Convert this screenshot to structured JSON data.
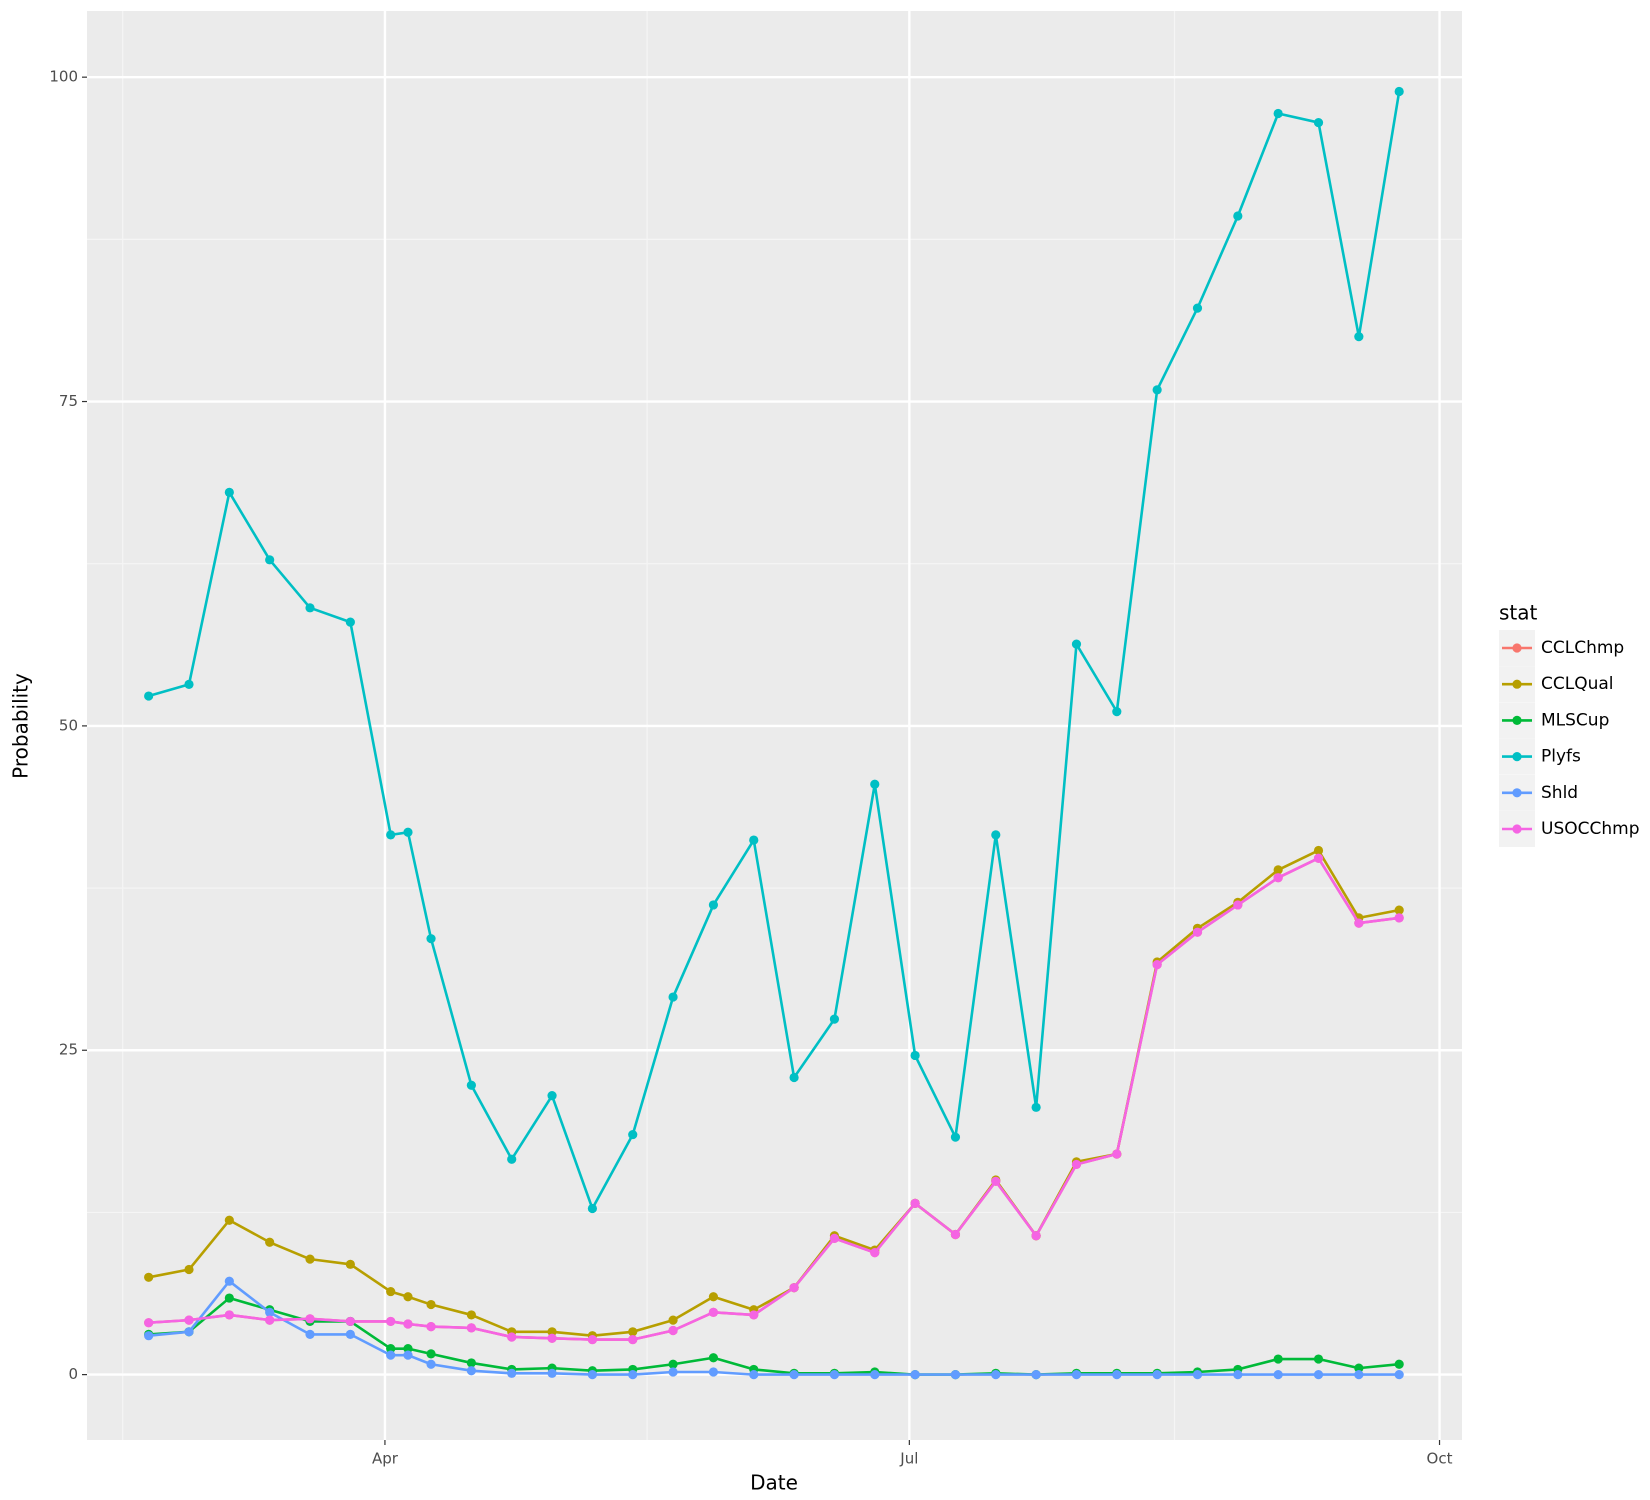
{
  "chart_data": {
    "type": "line",
    "x_label": "Date",
    "y_label": "Probability",
    "legend_title": "stat",
    "x": [
      50,
      57,
      64,
      71,
      78,
      85,
      92,
      95,
      99,
      106,
      113,
      120,
      127,
      134,
      141,
      148,
      155,
      162,
      169,
      176,
      183,
      190,
      197,
      204,
      211,
      218,
      225,
      232,
      239,
      246,
      253,
      260,
      267
    ],
    "xlim": [
      39.3,
      277.9
    ],
    "xticks": [
      {
        "value": 91,
        "label": "Apr"
      },
      {
        "value": 182,
        "label": "Jul"
      },
      {
        "value": 274,
        "label": "Oct"
      }
    ],
    "ylim": [
      -5.04,
      105.1
    ],
    "yticks": [
      0,
      25,
      50,
      75,
      100
    ],
    "grid": true,
    "legend_position": "right",
    "series": [
      {
        "name": "CCLChmp",
        "color": "#F8766D",
        "values": [
          4.0,
          4.2,
          4.6,
          4.2,
          4.3,
          4.1,
          4.1,
          3.9,
          3.7,
          3.6,
          2.9,
          2.8,
          2.7,
          2.7,
          3.4,
          4.8,
          4.6,
          6.7,
          10.5,
          9.4,
          13.2,
          10.8,
          14.9,
          10.7,
          16.2,
          17.0,
          31.6,
          34.1,
          36.2,
          38.3,
          39.8,
          34.8,
          35.2
        ]
      },
      {
        "name": "CCLQual",
        "color": "#B79F00",
        "values": [
          7.5,
          8.1,
          11.9,
          10.2,
          8.9,
          8.5,
          6.4,
          6.0,
          5.4,
          4.6,
          3.3,
          3.3,
          3.0,
          3.3,
          4.2,
          6.0,
          5.0,
          6.7,
          10.7,
          9.6,
          13.2,
          10.8,
          15.0,
          10.7,
          16.4,
          17.0,
          31.8,
          34.4,
          36.4,
          38.9,
          40.4,
          35.2,
          35.8
        ]
      },
      {
        "name": "MLSCup",
        "color": "#00BA38",
        "values": [
          3.1,
          3.3,
          5.9,
          5.0,
          4.1,
          4.1,
          2.0,
          2.0,
          1.6,
          0.9,
          0.4,
          0.5,
          0.3,
          0.4,
          0.8,
          1.3,
          0.4,
          0.1,
          0.1,
          0.2,
          0,
          0,
          0.1,
          0,
          0.1,
          0.1,
          0.1,
          0.2,
          0.4,
          1.2,
          1.2,
          0.5,
          0.8
        ]
      },
      {
        "name": "Plyfs",
        "color": "#00BFC4",
        "values": [
          52.3,
          53.2,
          68.0,
          62.8,
          59.1,
          58.0,
          41.6,
          41.8,
          33.6,
          22.3,
          16.6,
          21.5,
          12.8,
          18.5,
          29.1,
          36.2,
          41.2,
          22.9,
          27.4,
          45.5,
          24.6,
          18.3,
          41.6,
          20.6,
          56.3,
          51.1,
          75.9,
          82.2,
          89.3,
          97.2,
          96.5,
          80.0,
          98.9
        ]
      },
      {
        "name": "Shld",
        "color": "#619CFF",
        "values": [
          3.0,
          3.3,
          7.2,
          4.8,
          3.1,
          3.1,
          1.5,
          1.5,
          0.8,
          0.3,
          0.1,
          0.1,
          0,
          0,
          0.2,
          0.2,
          0,
          0,
          0,
          0,
          0,
          0,
          0,
          0,
          0,
          0,
          0,
          0,
          0,
          0,
          0,
          0,
          0
        ]
      },
      {
        "name": "USOCChmp",
        "color": "#F564E3",
        "values": [
          4.0,
          4.2,
          4.6,
          4.2,
          4.3,
          4.1,
          4.1,
          3.9,
          3.7,
          3.6,
          2.9,
          2.8,
          2.7,
          2.7,
          3.4,
          4.8,
          4.6,
          6.7,
          10.5,
          9.4,
          13.2,
          10.8,
          14.9,
          10.7,
          16.2,
          17.0,
          31.6,
          34.1,
          36.2,
          38.3,
          39.8,
          34.8,
          35.2
        ]
      }
    ]
  }
}
